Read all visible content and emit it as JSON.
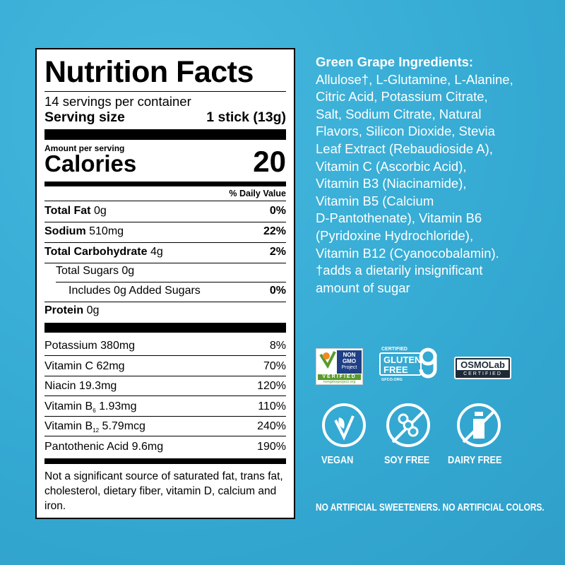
{
  "nutrition": {
    "title": "Nutrition Facts",
    "servings": "14 servings per container",
    "serving_size_label": "Serving size",
    "serving_size_value": "1 stick (13g)",
    "amount_per_serving": "Amount per serving",
    "calories_label": "Calories",
    "calories_value": "20",
    "dv_header": "% Daily Value",
    "nutrients": [
      {
        "name": "Total Fat",
        "amount": "0g",
        "dv": "0%"
      },
      {
        "name": "Sodium",
        "amount": "510mg",
        "dv": "22%"
      },
      {
        "name": "Total Carbohydrate",
        "amount": "4g",
        "dv": "2%"
      },
      {
        "name": "Total Sugars",
        "amount": "0g",
        "dv": ""
      },
      {
        "name": "Includes 0g Added Sugars",
        "amount": "",
        "dv": "0%"
      },
      {
        "name": "Protein",
        "amount": "0g",
        "dv": ""
      }
    ],
    "vitamins": [
      {
        "name": "Potassium",
        "sub": "",
        "amount": "380mg",
        "dv": "8%"
      },
      {
        "name": "Vitamin C",
        "sub": "",
        "amount": "62mg",
        "dv": "70%"
      },
      {
        "name": "Niacin",
        "sub": "",
        "amount": "19.3mg",
        "dv": "120%"
      },
      {
        "name": "Vitamin B",
        "sub": "6",
        "amount": "1.93mg",
        "dv": "110%"
      },
      {
        "name": "Vitamin B",
        "sub": "12",
        "amount": "5.79mcg",
        "dv": "240%"
      },
      {
        "name": "Pantothenic Acid",
        "sub": "",
        "amount": "9.6mg",
        "dv": "190%"
      }
    ],
    "footnote": "Not a significant source of saturated fat, trans fat, cholesterol, dietary fiber, vitamin D, calcium and iron."
  },
  "ingredients": {
    "title": "Green Grape Ingredients:",
    "lines": [
      "Allulose†, L-Glutamine, L-Alanine,",
      "Citric Acid, Potassium Citrate,",
      "Salt, Sodium Citrate, Natural",
      "Flavors, Silicon Dioxide, Stevia",
      "Leaf Extract (Rebaudioside A),",
      "Vitamin C (Ascorbic Acid),",
      "Vitamin B3 (Niacinamide),",
      "Vitamin B5 (Calcium",
      "D-Pantothenate), Vitamin B6",
      "(Pyridoxine Hydrochloride),",
      "Vitamin B12 (Cyanocobalamin).",
      "†adds a dietarily insignificant",
      "amount of sugar"
    ]
  },
  "badges": {
    "nongmo": {
      "l1": "NON",
      "l2": "GMO",
      "l3": "Project",
      "verified": "VERIFIED",
      "url": "nongmoproject.org"
    },
    "gluten": {
      "top": "CERTIFIED",
      "l1": "GLUTEN",
      "l2": "FREE",
      "url": "GFCO.ORG"
    },
    "osmo": {
      "name": "OSMOLab",
      "cert": "CERTIFIED"
    }
  },
  "claims": [
    "VEGAN",
    "SOY FREE",
    "DAIRY FREE"
  ],
  "footer": "NO ARTIFICIAL SWEETENERS. NO ARTIFICIAL COLORS.",
  "colors": {
    "background": "#37aed6",
    "text": "#ffffff"
  }
}
